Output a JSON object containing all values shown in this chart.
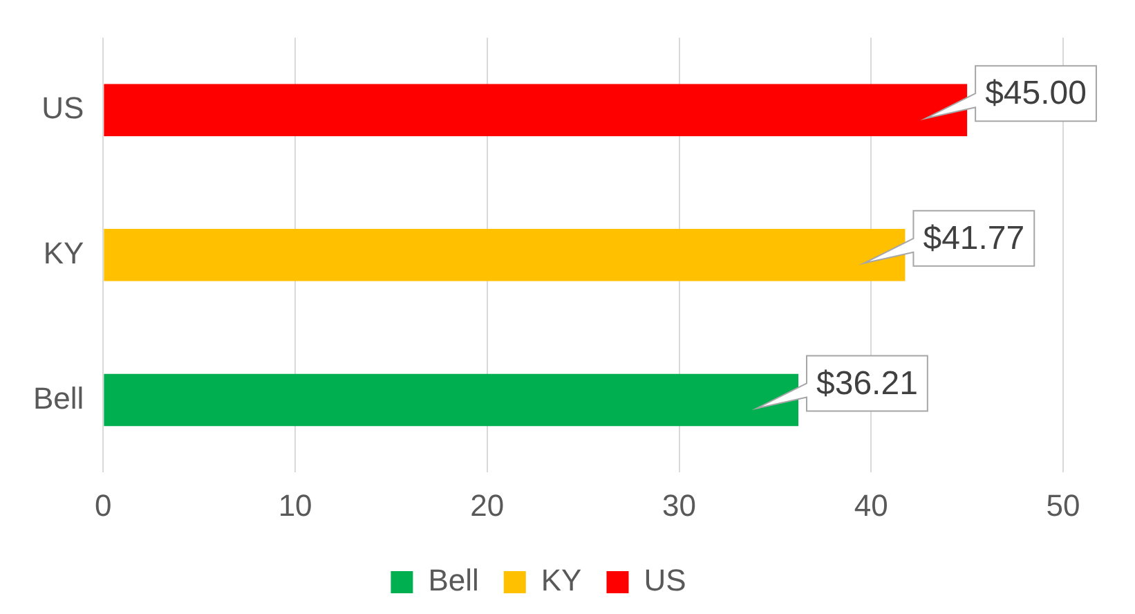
{
  "chart_data": {
    "type": "bar",
    "orientation": "horizontal",
    "stacked": true,
    "categories": [
      "US",
      "KY",
      "Bell"
    ],
    "series": [
      {
        "name": "Bell",
        "color": "#00b050",
        "values": [
          null,
          null,
          36.21
        ],
        "value_labels": [
          null,
          null,
          "$36.21"
        ]
      },
      {
        "name": "KY",
        "color": "#ffc000",
        "values": [
          null,
          41.77,
          null
        ],
        "value_labels": [
          null,
          "$41.77",
          null
        ]
      },
      {
        "name": "US",
        "color": "#ff0000",
        "values": [
          45.0,
          null,
          null
        ],
        "value_labels": [
          "$45.00",
          null,
          null
        ]
      }
    ],
    "xlim": [
      0,
      50
    ],
    "xticks": [
      0,
      10,
      20,
      30,
      40,
      50
    ],
    "grid": "x",
    "legend": "bottom"
  }
}
